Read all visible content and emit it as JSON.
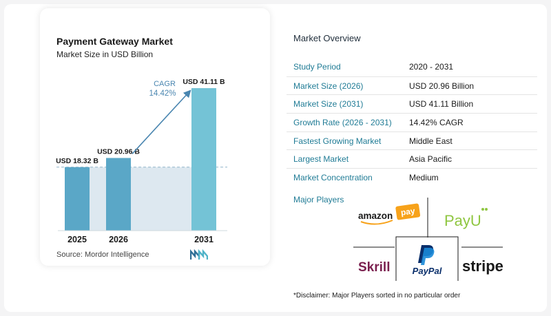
{
  "chart_data": {
    "type": "bar",
    "title": "Payment Gateway Market",
    "subtitle": "Market Size in USD Billion",
    "categories": [
      "2025",
      "2026",
      "2031"
    ],
    "values": [
      18.32,
      20.96,
      41.11
    ],
    "value_labels": [
      "USD 18.32 B",
      "USD 20.96 B",
      "USD 41.11 B"
    ],
    "cagr_label": "CAGR",
    "cagr_value": "14.42%",
    "colors": {
      "bar_dark": "#5aa7c7",
      "bar_light": "#74c3d6",
      "band": "#dde8f0",
      "arrow": "#4a86b0"
    }
  },
  "source": "Source:  Mordor Intelligence",
  "overview": {
    "title": "Market Overview",
    "rows": [
      {
        "label": "Study Period",
        "value": "2020 - 2031"
      },
      {
        "label": "Market Size (2026)",
        "value": "USD 20.96 Billion"
      },
      {
        "label": "Market Size (2031)",
        "value": "USD 41.11 Billion"
      },
      {
        "label": "Growth Rate (2026 - 2031)",
        "value": "14.42% CAGR"
      },
      {
        "label": "Fastest Growing Market",
        "value": "Middle East"
      },
      {
        "label": "Largest Market",
        "value": "Asia Pacific"
      },
      {
        "label": "Market Concentration",
        "value": "Medium"
      }
    ]
  },
  "players": {
    "title": "Major Players",
    "logos": [
      {
        "name": "amazon-pay-logo",
        "text": "amazon",
        "sub": "pay"
      },
      {
        "name": "payu-logo",
        "text": "PayU"
      },
      {
        "name": "skrill-logo",
        "text": "Skrill"
      },
      {
        "name": "paypal-logo",
        "text": "PayPal"
      },
      {
        "name": "stripe-logo",
        "text": "stripe"
      }
    ]
  },
  "disclaimer": "*Disclaimer: Major Players sorted in no particular order"
}
